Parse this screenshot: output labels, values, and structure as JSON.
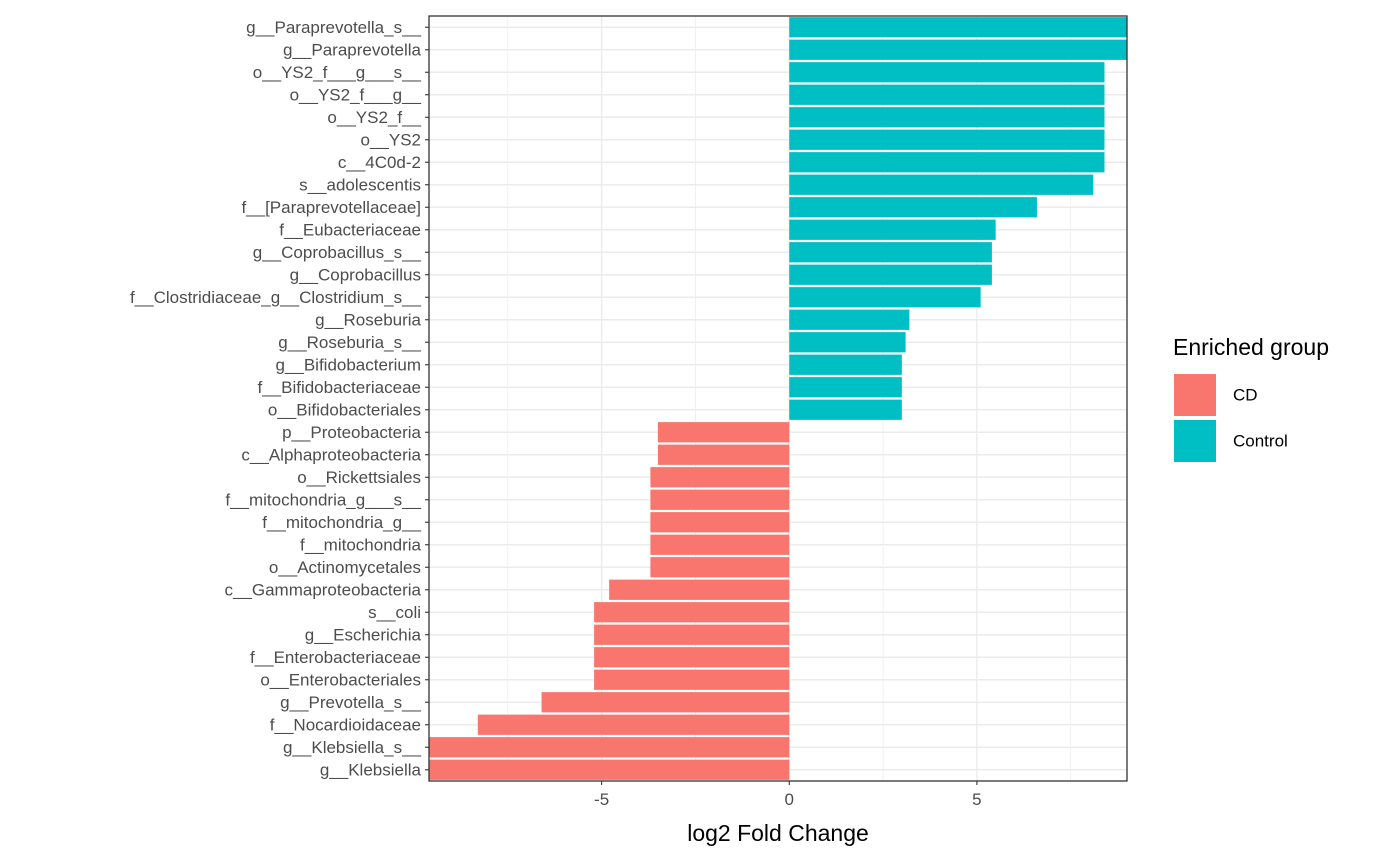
{
  "chart_data": {
    "type": "bar",
    "orientation": "horizontal",
    "xlabel": "log2 Fold Change",
    "ylabel": "",
    "xlim": [
      -9.6,
      9.0
    ],
    "xticks": [
      -5,
      0,
      5
    ],
    "xtick_labels": [
      "-5",
      "0",
      "5"
    ],
    "grid": true,
    "legend": {
      "title": "Enriched group",
      "placement": "right",
      "entries": [
        {
          "name": "CD",
          "color": "#F8766D"
        },
        {
          "name": "Control",
          "color": "#00BFC4"
        }
      ]
    },
    "categories": [
      "g__Paraprevotella_s__",
      "g__Paraprevotella",
      "o__YS2_f___g___s__",
      "o__YS2_f___g__",
      "o__YS2_f__",
      "o__YS2",
      "c__4C0d-2",
      "s__adolescentis",
      "f__[Paraprevotellaceae]",
      "f__Eubacteriaceae",
      "g__Coprobacillus_s__",
      "g__Coprobacillus",
      "f__Clostridiaceae_g__Clostridium_s__",
      "g__Roseburia",
      "g__Roseburia_s__",
      "g__Bifidobacterium",
      "f__Bifidobacteriaceae",
      "o__Bifidobacteriales",
      "p__Proteobacteria",
      "c__Alphaproteobacteria",
      "o__Rickettsiales",
      "f__mitochondria_g___s__",
      "f__mitochondria_g__",
      "f__mitochondria",
      "o__Actinomycetales",
      "c__Gammaproteobacteria",
      "s__coli",
      "g__Escherichia",
      "f__Enterobacteriaceae",
      "o__Enterobacteriales",
      "g__Prevotella_s__",
      "f__Nocardioidaceae",
      "g__Klebsiella_s__",
      "g__Klebsiella"
    ],
    "values": [
      9.0,
      9.0,
      8.4,
      8.4,
      8.4,
      8.4,
      8.4,
      8.1,
      6.6,
      5.5,
      5.4,
      5.4,
      5.1,
      3.2,
      3.1,
      3.0,
      3.0,
      3.0,
      -3.5,
      -3.5,
      -3.7,
      -3.7,
      -3.7,
      -3.7,
      -3.7,
      -4.8,
      -5.2,
      -5.2,
      -5.2,
      -5.2,
      -6.6,
      -8.3,
      -9.6,
      -9.6
    ],
    "groups": [
      "Control",
      "Control",
      "Control",
      "Control",
      "Control",
      "Control",
      "Control",
      "Control",
      "Control",
      "Control",
      "Control",
      "Control",
      "Control",
      "Control",
      "Control",
      "Control",
      "Control",
      "Control",
      "CD",
      "CD",
      "CD",
      "CD",
      "CD",
      "CD",
      "CD",
      "CD",
      "CD",
      "CD",
      "CD",
      "CD",
      "CD",
      "CD",
      "CD",
      "CD"
    ]
  }
}
